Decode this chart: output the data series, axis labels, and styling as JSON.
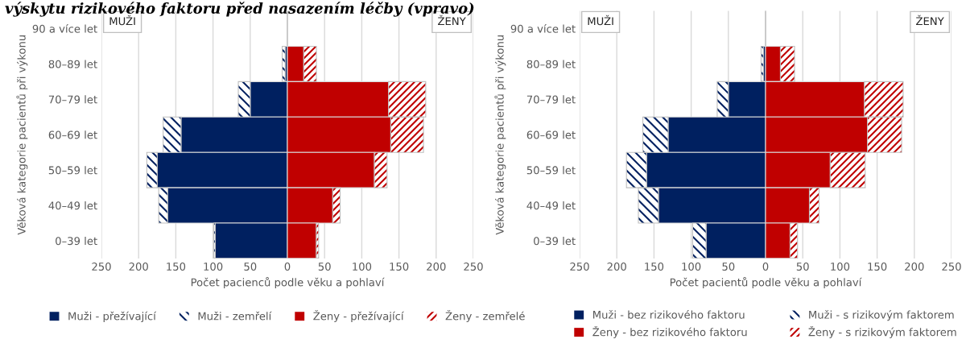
{
  "chart_data": [
    {
      "type": "bar",
      "orientation": "horizontal",
      "stacked": true,
      "title": "výskytu rizikového faktoru před nasazením léčby (vpravo)",
      "categories": [
        "90 a více let",
        "80–89 let",
        "70–79 let",
        "60–69 let",
        "50–59 let",
        "40–49 let",
        "0–39 let"
      ],
      "series": [
        {
          "name": "Muži - přežívající",
          "color": "#002060",
          "values": [
            0,
            -3,
            -50,
            -143,
            -175,
            -161,
            -97
          ]
        },
        {
          "name": "Muži - zemřelí",
          "color": "#002060",
          "values": [
            0,
            -4,
            -16,
            -24,
            -14,
            -12,
            -2
          ]
        },
        {
          "name": "Ženy - přežívající",
          "color": "#c00000",
          "values": [
            0,
            22,
            136,
            139,
            117,
            61,
            39
          ]
        },
        {
          "name": "Ženy - zemřelé",
          "color": "#c00000",
          "values": [
            0,
            17,
            50,
            44,
            17,
            10,
            3
          ]
        }
      ],
      "xlim": [
        -250,
        250
      ],
      "xticks": [
        {
          "value": -250,
          "label": "250"
        },
        {
          "value": -200,
          "label": "200"
        },
        {
          "value": -150,
          "label": "150"
        },
        {
          "value": -100,
          "label": "100"
        },
        {
          "value": -50,
          "label": "50"
        },
        0,
        50,
        100,
        150,
        200,
        250
      ],
      "xlabel": "Počet pacienců podle věku a pohlaví",
      "ylabel": "Věková kategorie pacientů při výkonu",
      "annotations": [
        "MUŽI",
        "ŽENY"
      ],
      "grid": "x",
      "legend": "bottom"
    },
    {
      "type": "bar",
      "orientation": "horizontal",
      "stacked": true,
      "categories": [
        "90 a více let",
        "80–89 let",
        "70–79 let",
        "60–69 let",
        "50–59 let",
        "40–49 let",
        "0–39 let"
      ],
      "series": [
        {
          "name": "Muži - bez rizikového faktoru",
          "color": "#002060",
          "values": [
            0,
            -3,
            -50,
            -131,
            -160,
            -144,
            -80
          ]
        },
        {
          "name": "Muži - s rizikovým faktorem",
          "color": "#002060",
          "values": [
            0,
            -3,
            -15,
            -34,
            -27,
            -27,
            -18
          ]
        },
        {
          "name": "Ženy - bez rizikového faktoru",
          "color": "#c00000",
          "values": [
            0,
            20,
            133,
            137,
            87,
            59,
            33
          ]
        },
        {
          "name": "Ženy - s rizikovým faktorem",
          "color": "#c00000",
          "values": [
            0,
            19,
            52,
            46,
            47,
            13,
            10
          ]
        }
      ],
      "xlim": [
        -250,
        250
      ],
      "xticks": [
        {
          "value": -250,
          "label": "250"
        },
        {
          "value": -200,
          "label": "200"
        },
        {
          "value": -150,
          "label": "150"
        },
        {
          "value": -100,
          "label": "100"
        },
        {
          "value": -50,
          "label": "50"
        },
        0,
        50,
        100,
        150,
        200,
        250
      ],
      "xlabel": "Počet pacientů podle věku a pohlaví",
      "ylabel": "Věková kategorie pacientů při výkonu",
      "annotations": [
        "MUŽI",
        "ŽENY"
      ],
      "grid": "x",
      "legend": "bottom"
    }
  ]
}
